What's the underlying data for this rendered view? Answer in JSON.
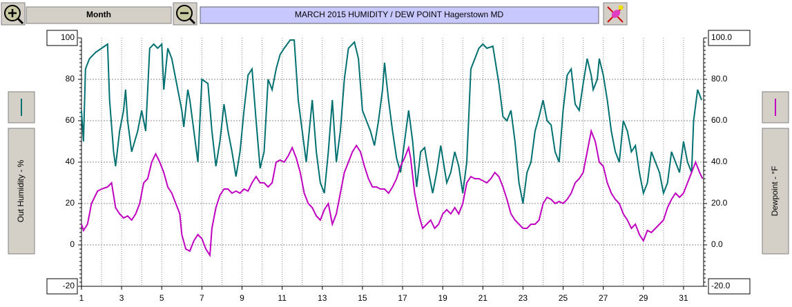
{
  "toolbar": {
    "period": "Month"
  },
  "chart_data": {
    "type": "line",
    "title": "MARCH  2015  HUMIDITY / DEW POINT  Hagerstown MD",
    "xlim": [
      1,
      32
    ],
    "xticks": [
      1,
      3,
      5,
      7,
      9,
      11,
      13,
      15,
      17,
      19,
      21,
      23,
      25,
      27,
      29,
      31
    ],
    "ylim": [
      -20,
      100
    ],
    "yticks": [
      -20,
      0,
      20,
      40,
      60,
      80,
      100
    ],
    "y2lim": [
      -20,
      100
    ],
    "y2ticks": [
      {
        "value": -20,
        "label": "-20.0"
      },
      {
        "value": 0,
        "label": "0.0"
      },
      {
        "value": 20,
        "label": "20.0"
      },
      {
        "value": 40,
        "label": "40.0"
      },
      {
        "value": 60,
        "label": "60.0"
      },
      {
        "value": 80,
        "label": "80.0"
      },
      {
        "value": 100,
        "label": "100.0"
      }
    ],
    "grid": true,
    "series": [
      {
        "name": "Out Humidity - %",
        "color": "#007070",
        "x": [
          1.0,
          1.1,
          1.2,
          1.4,
          1.7,
          2.0,
          2.3,
          2.4,
          2.6,
          2.7,
          2.9,
          3.1,
          3.2,
          3.3,
          3.5,
          3.8,
          4.0,
          4.2,
          4.4,
          4.6,
          4.8,
          5.0,
          5.1,
          5.3,
          5.5,
          5.7,
          6.0,
          6.1,
          6.3,
          6.4,
          6.6,
          6.8,
          6.9,
          7.0,
          7.3,
          7.5,
          7.7,
          7.9,
          8.1,
          8.3,
          8.5,
          8.7,
          8.9,
          9.1,
          9.3,
          9.5,
          9.7,
          9.9,
          10.1,
          10.3,
          10.5,
          10.7,
          10.9,
          11.1,
          11.4,
          11.6,
          11.8,
          12.0,
          12.2,
          12.4,
          12.5,
          12.7,
          12.9,
          13.1,
          13.3,
          13.5,
          13.7,
          13.9,
          14.1,
          14.3,
          14.6,
          14.8,
          15.0,
          15.2,
          15.4,
          15.6,
          15.8,
          16.0,
          16.1,
          16.3,
          16.5,
          16.7,
          16.9,
          17.1,
          17.3,
          17.5,
          17.7,
          17.9,
          18.1,
          18.3,
          18.5,
          18.7,
          18.9,
          19.0,
          19.2,
          19.4,
          19.6,
          19.8,
          20.0,
          20.2,
          20.4,
          20.6,
          20.8,
          21.0,
          21.2,
          21.5,
          21.8,
          22.0,
          22.2,
          22.4,
          22.6,
          22.8,
          23.0,
          23.2,
          23.4,
          23.6,
          23.8,
          24.0,
          24.2,
          24.4,
          24.6,
          24.8,
          25.0,
          25.2,
          25.4,
          25.6,
          25.8,
          26.0,
          26.2,
          26.4,
          26.5,
          26.7,
          26.8,
          27.0,
          27.2,
          27.4,
          27.6,
          27.8,
          28.0,
          28.2,
          28.4,
          28.6,
          28.8,
          29.0,
          29.2,
          29.4,
          29.6,
          29.8,
          30.0,
          30.2,
          30.4,
          30.6,
          30.8,
          31.0,
          31.2,
          31.4,
          31.5,
          31.7,
          31.9
        ],
        "values": [
          65,
          50,
          85,
          90,
          93,
          95,
          97,
          70,
          45,
          38,
          55,
          65,
          75,
          60,
          45,
          55,
          65,
          55,
          95,
          97,
          95,
          97,
          75,
          95,
          90,
          80,
          65,
          57,
          75,
          70,
          55,
          40,
          60,
          80,
          78,
          55,
          38,
          50,
          68,
          55,
          45,
          33,
          45,
          65,
          82,
          85,
          60,
          37,
          45,
          80,
          75,
          85,
          92,
          95,
          99,
          99,
          70,
          55,
          40,
          60,
          70,
          45,
          30,
          25,
          45,
          70,
          40,
          55,
          80,
          95,
          98,
          90,
          65,
          60,
          55,
          48,
          60,
          75,
          88,
          70,
          55,
          42,
          35,
          50,
          65,
          50,
          28,
          45,
          47,
          35,
          25,
          35,
          48,
          42,
          30,
          35,
          45,
          38,
          25,
          40,
          85,
          90,
          95,
          97,
          95,
          96,
          78,
          62,
          60,
          65,
          50,
          30,
          20,
          35,
          40,
          55,
          62,
          70,
          60,
          58,
          45,
          40,
          65,
          82,
          85,
          68,
          65,
          78,
          90,
          82,
          75,
          80,
          90,
          82,
          70,
          55,
          45,
          40,
          60,
          55,
          45,
          48,
          35,
          25,
          30,
          45,
          40,
          35,
          25,
          30,
          45,
          40,
          35,
          50,
          40,
          35,
          60,
          75,
          70
        ]
      },
      {
        "name": "Dewpoint - °F",
        "color": "#c000c0",
        "axis": "y2",
        "x": [
          1.0,
          1.1,
          1.3,
          1.5,
          1.8,
          2.0,
          2.3,
          2.5,
          2.7,
          2.9,
          3.1,
          3.3,
          3.5,
          3.7,
          3.9,
          4.1,
          4.3,
          4.5,
          4.7,
          4.9,
          5.1,
          5.3,
          5.5,
          5.7,
          5.9,
          6.0,
          6.2,
          6.4,
          6.6,
          6.8,
          7.0,
          7.2,
          7.4,
          7.5,
          7.7,
          7.9,
          8.1,
          8.3,
          8.5,
          8.7,
          8.9,
          9.1,
          9.3,
          9.5,
          9.7,
          9.9,
          10.1,
          10.3,
          10.5,
          10.7,
          10.9,
          11.1,
          11.3,
          11.5,
          11.7,
          11.9,
          12.1,
          12.3,
          12.5,
          12.7,
          12.9,
          13.1,
          13.3,
          13.5,
          13.7,
          13.9,
          14.1,
          14.3,
          14.5,
          14.7,
          14.9,
          15.1,
          15.3,
          15.5,
          15.7,
          15.9,
          16.1,
          16.3,
          16.5,
          16.7,
          16.9,
          17.1,
          17.3,
          17.4,
          17.6,
          17.8,
          18.0,
          18.2,
          18.4,
          18.6,
          18.8,
          19.0,
          19.2,
          19.4,
          19.6,
          19.8,
          20.0,
          20.2,
          20.4,
          20.6,
          20.8,
          21.0,
          21.2,
          21.4,
          21.6,
          21.8,
          22.0,
          22.2,
          22.4,
          22.6,
          22.8,
          23.0,
          23.2,
          23.4,
          23.6,
          23.8,
          24.0,
          24.2,
          24.4,
          24.6,
          24.8,
          25.0,
          25.2,
          25.4,
          25.6,
          25.8,
          26.0,
          26.2,
          26.4,
          26.6,
          26.8,
          27.0,
          27.2,
          27.4,
          27.6,
          27.8,
          28.0,
          28.2,
          28.4,
          28.6,
          28.8,
          29.0,
          29.2,
          29.4,
          29.6,
          29.8,
          30.0,
          30.2,
          30.4,
          30.6,
          30.8,
          31.0,
          31.2,
          31.4,
          31.6,
          31.8,
          31.95
        ],
        "values": [
          10,
          7,
          10,
          20,
          26,
          27,
          28,
          30,
          18,
          15,
          13,
          14,
          12,
          15,
          20,
          30,
          32,
          40,
          44,
          40,
          35,
          28,
          25,
          20,
          15,
          5,
          -2,
          -3,
          2,
          5,
          3,
          -2,
          -5,
          8,
          18,
          24,
          27,
          27,
          25,
          26,
          25,
          27,
          26,
          30,
          33,
          30,
          30,
          28,
          30,
          40,
          41,
          40,
          43,
          47,
          42,
          35,
          25,
          20,
          18,
          14,
          12,
          17,
          20,
          10,
          15,
          25,
          35,
          40,
          45,
          48,
          45,
          38,
          32,
          28,
          28,
          27,
          27,
          25,
          28,
          32,
          38,
          42,
          47,
          42,
          25,
          15,
          8,
          10,
          12,
          8,
          10,
          15,
          17,
          15,
          18,
          15,
          20,
          30,
          33,
          32,
          32,
          31,
          30,
          32,
          35,
          33,
          28,
          22,
          15,
          12,
          10,
          8,
          8,
          10,
          10,
          12,
          20,
          23,
          22,
          20,
          21,
          20,
          22,
          25,
          30,
          32,
          35,
          45,
          55,
          50,
          40,
          38,
          30,
          25,
          22,
          20,
          15,
          12,
          8,
          10,
          5,
          2,
          7,
          6,
          8,
          10,
          12,
          18,
          22,
          25,
          23,
          25,
          30,
          35,
          40,
          35,
          32
        ]
      }
    ]
  }
}
